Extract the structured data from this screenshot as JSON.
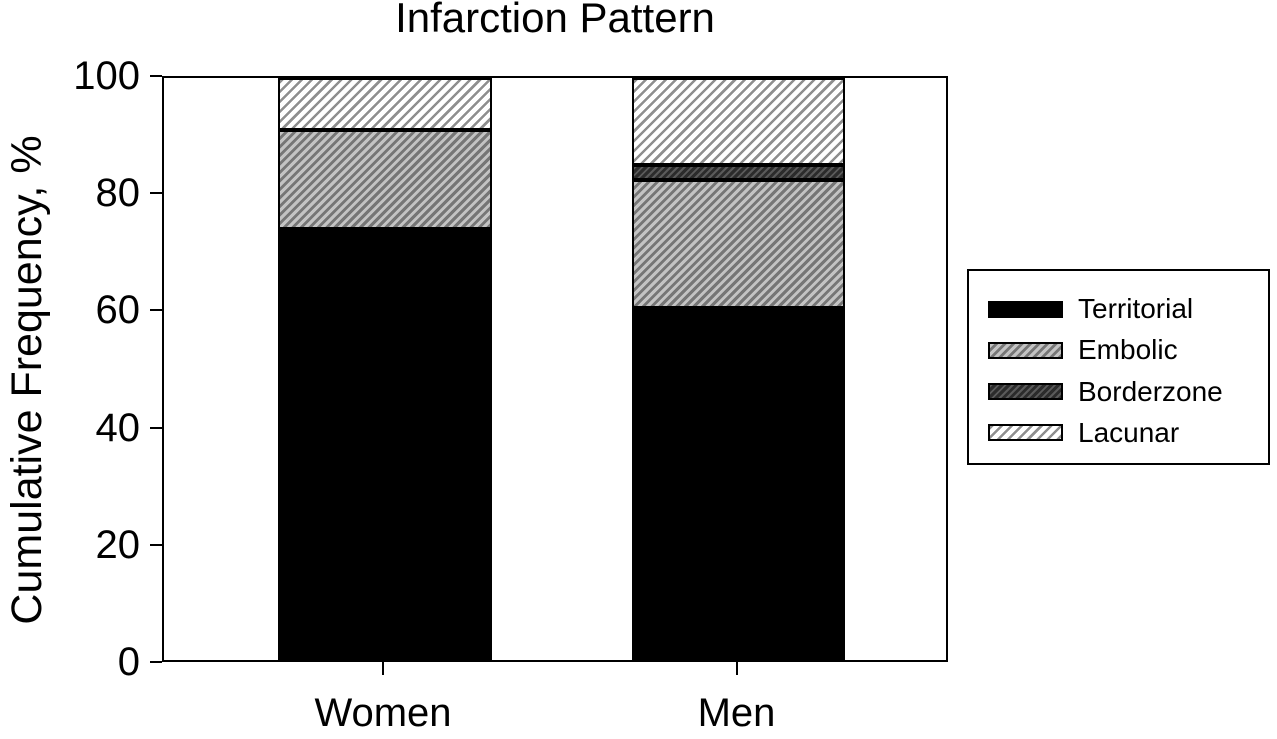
{
  "chart_data": {
    "type": "bar",
    "stacked": true,
    "title": "Infarction Pattern",
    "ylabel": "Cumulative Frequency, %",
    "xlabel": "",
    "categories": [
      "Women",
      "Men"
    ],
    "series": [
      {
        "name": "Territorial",
        "values": [
          74,
          60.5
        ],
        "pattern": "solid",
        "color": "#000000"
      },
      {
        "name": "Embolic",
        "values": [
          17,
          22
        ],
        "pattern": "hatch-medium",
        "color": "#9e9e9e"
      },
      {
        "name": "Borderzone",
        "values": [
          0,
          2.5
        ],
        "pattern": "hatch-dark",
        "color": "#404040"
      },
      {
        "name": "Lacunar",
        "values": [
          9,
          15
        ],
        "pattern": "hatch-light",
        "color": "#ffffff"
      }
    ],
    "ylim": [
      0,
      100
    ],
    "yticks": [
      0,
      20,
      40,
      60,
      80,
      100
    ],
    "legend_position": "right",
    "legend_entries": [
      "Territorial",
      "Embolic",
      "Borderzone",
      "Lacunar"
    ],
    "grid": false,
    "hatch_direction": "forward-diagonal"
  },
  "colors": {
    "axis": "#000000",
    "text": "#000000",
    "background": "#ffffff"
  }
}
